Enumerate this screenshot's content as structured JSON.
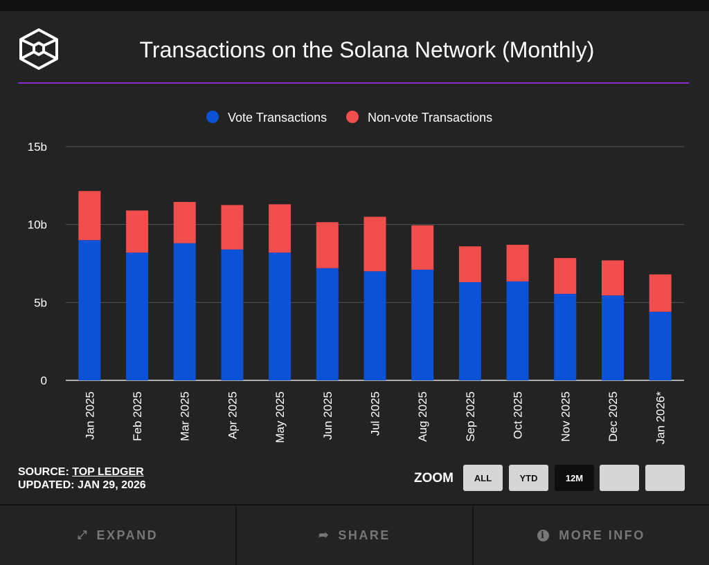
{
  "header": {
    "title": "Transactions on the Solana Network (Monthly)",
    "accent_color": "#8a2bd0",
    "logo_icon": "cube-logo-icon"
  },
  "chart_data": {
    "type": "bar",
    "stacked": true,
    "title": "Transactions on the Solana Network (Monthly)",
    "categories": [
      "Jan 2025",
      "Feb 2025",
      "Mar 2025",
      "Apr 2025",
      "May 2025",
      "Jun 2025",
      "Jul 2025",
      "Aug 2025",
      "Sep 2025",
      "Oct 2025",
      "Nov 2025",
      "Dec 2025",
      "Jan 2026*"
    ],
    "series": [
      {
        "name": "Vote Transactions",
        "color": "#0b52d6",
        "values": [
          9.0,
          8.2,
          8.8,
          8.4,
          8.2,
          7.2,
          7.0,
          7.1,
          6.3,
          6.35,
          5.55,
          5.45,
          4.4
        ]
      },
      {
        "name": "Non-vote Transactions",
        "color": "#f04d4d",
        "values": [
          3.15,
          2.7,
          2.65,
          2.85,
          3.1,
          2.95,
          3.5,
          2.85,
          2.3,
          2.35,
          2.3,
          2.25,
          2.4
        ]
      }
    ],
    "y_ticks": [
      "0",
      "5b",
      "10b",
      "15b"
    ],
    "y_tick_values": [
      0,
      5,
      10,
      15
    ],
    "ylim": [
      0,
      15
    ],
    "y_unit": "billions",
    "grid": true,
    "legend_position": "top"
  },
  "source": {
    "label": "SOURCE:",
    "link": "TOP LEDGER",
    "updated_label": "UPDATED:",
    "updated": "JAN 29, 2026"
  },
  "zoom": {
    "label": "ZOOM",
    "buttons": [
      {
        "label": "ALL"
      },
      {
        "label": "YTD"
      },
      {
        "label": "12M",
        "active": true
      },
      {
        "label": ""
      },
      {
        "label": ""
      }
    ]
  },
  "footer": {
    "expand": "EXPAND",
    "share": "SHARE",
    "more_info": "MORE INFO"
  }
}
